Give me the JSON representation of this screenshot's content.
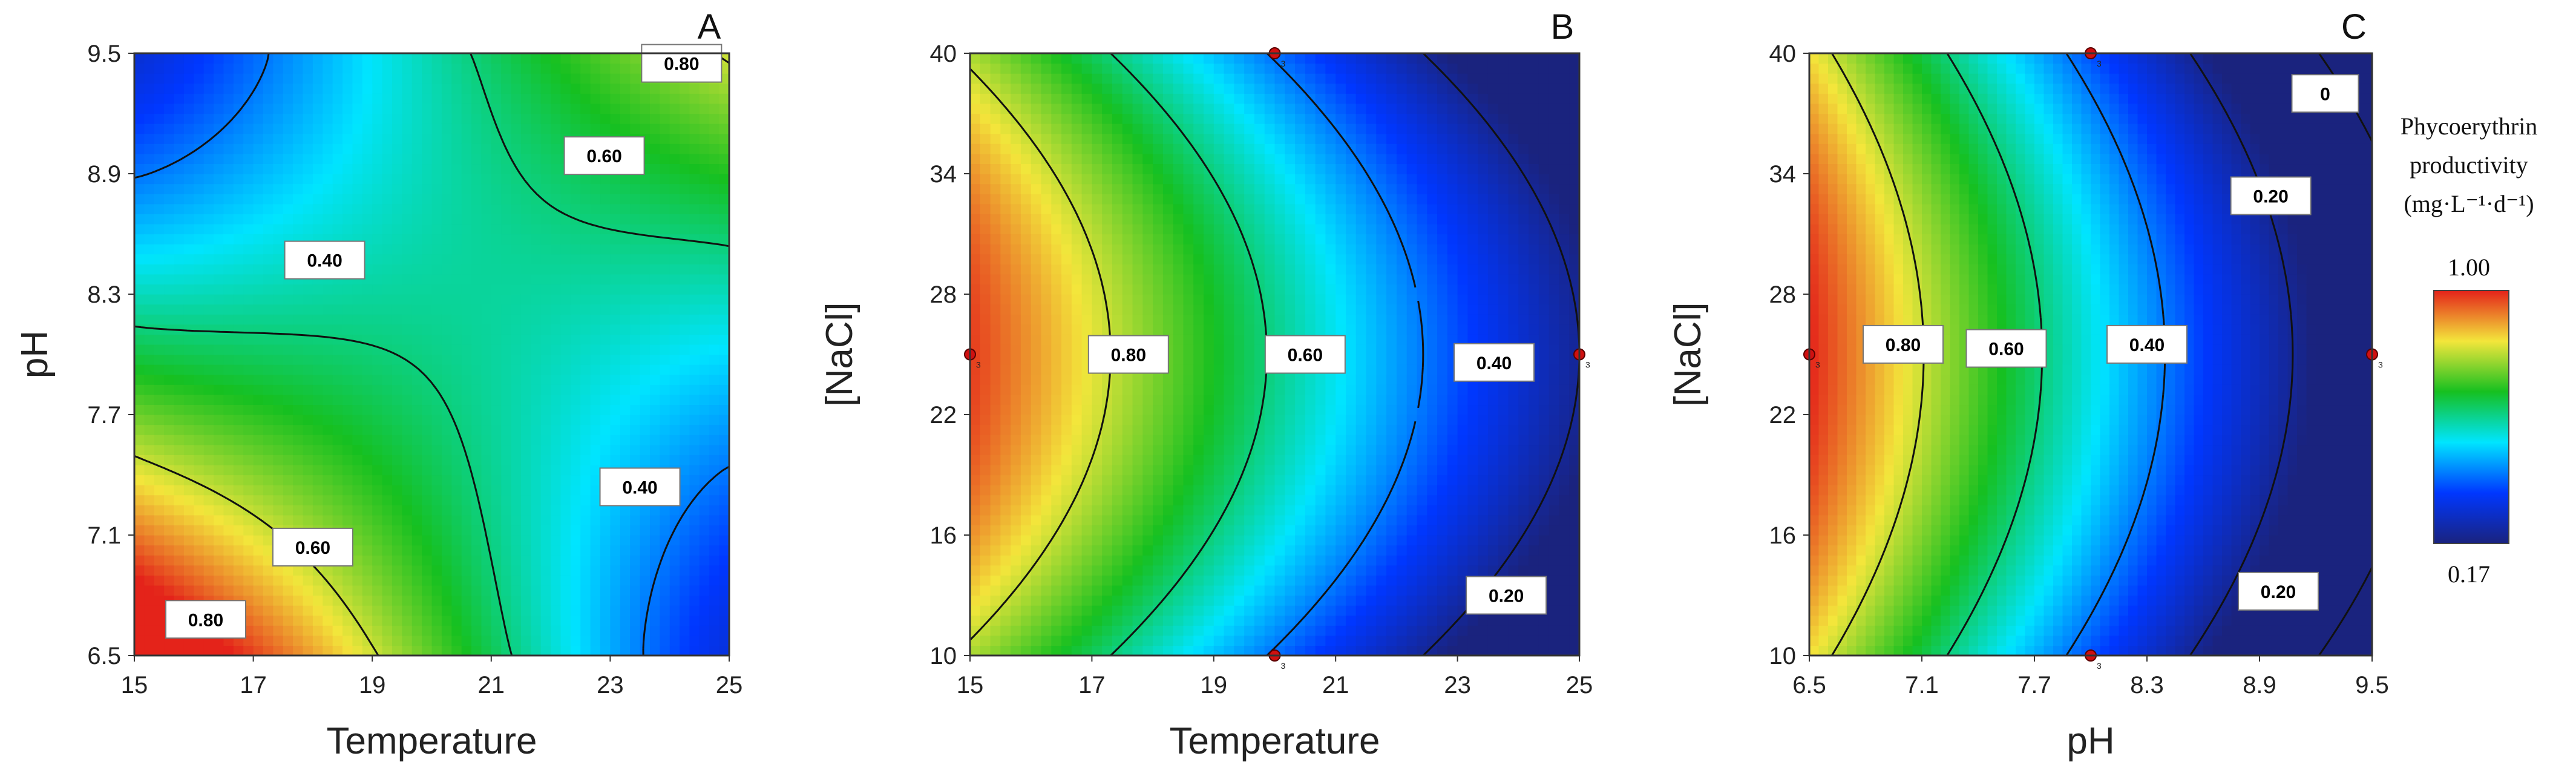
{
  "colorbar": {
    "title_lines": [
      "Phycoerythrin",
      "productivity",
      "(mg·L⁻¹·d⁻¹)"
    ],
    "max_label": "1.00",
    "min_label": "0.17",
    "max": 1.0,
    "min": 0.17,
    "stops": [
      "#1a237e",
      "#0037ff",
      "#00e5ff",
      "#16c020",
      "#f3e63b",
      "#e4231a"
    ]
  },
  "chart_data": [
    {
      "panel": "A",
      "type": "heatmap",
      "xlabel": "Temperature",
      "ylabel": "pH",
      "xlim": [
        15,
        25
      ],
      "ylim": [
        6.5,
        9.5
      ],
      "xticks": [
        "15",
        "17",
        "19",
        "21",
        "23",
        "25"
      ],
      "yticks": [
        "6.5",
        "7.1",
        "7.7",
        "8.3",
        "8.9",
        "9.5"
      ],
      "value_range": [
        0.17,
        1.0
      ],
      "contour_levels": [
        0.4,
        0.6,
        0.8
      ],
      "contour_labels": [
        {
          "text": "0.80",
          "x": 24.2,
          "y": 9.45
        },
        {
          "text": "0.60",
          "x": 22.9,
          "y": 8.99
        },
        {
          "text": "0.40",
          "x": 18.2,
          "y": 8.47
        },
        {
          "text": "0.40",
          "x": 23.5,
          "y": 7.34
        },
        {
          "text": "0.60",
          "x": 18.0,
          "y": 7.04
        },
        {
          "text": "0.80",
          "x": 16.2,
          "y": 6.68
        }
      ],
      "design_points": []
    },
    {
      "panel": "B",
      "type": "heatmap",
      "xlabel": "Temperature",
      "ylabel": "[NaCl]",
      "xlim": [
        15,
        25
      ],
      "ylim": [
        10,
        40
      ],
      "xticks": [
        "15",
        "17",
        "19",
        "21",
        "23",
        "25"
      ],
      "yticks": [
        "10",
        "16",
        "22",
        "28",
        "34",
        "40"
      ],
      "value_range": [
        0.17,
        1.0
      ],
      "contour_levels": [
        0.2,
        0.4,
        0.6,
        0.8
      ],
      "contour_labels": [
        {
          "text": "0.80",
          "x": 17.6,
          "y": 25.0
        },
        {
          "text": "0.60",
          "x": 20.5,
          "y": 25.0
        },
        {
          "text": "0.40",
          "x": 23.6,
          "y": 24.6
        },
        {
          "text": "0.20",
          "x": 23.8,
          "y": 13.0
        }
      ],
      "design_points": [
        {
          "x": 20,
          "y": 40,
          "label": "3"
        },
        {
          "x": 15,
          "y": 25,
          "label": "3"
        },
        {
          "x": 25,
          "y": 25,
          "label": "3"
        },
        {
          "x": 20,
          "y": 10,
          "label": "3"
        }
      ]
    },
    {
      "panel": "C",
      "type": "heatmap",
      "xlabel": "pH",
      "ylabel": "[NaCl]",
      "xlim": [
        6.5,
        9.5
      ],
      "ylim": [
        10,
        40
      ],
      "xticks": [
        "6.5",
        "7.1",
        "7.7",
        "8.3",
        "8.9",
        "9.5"
      ],
      "yticks": [
        "10",
        "16",
        "22",
        "28",
        "34",
        "40"
      ],
      "value_range": [
        0.17,
        1.0
      ],
      "contour_levels": [
        0,
        0.2,
        0.4,
        0.6,
        0.8
      ],
      "contour_labels": [
        {
          "text": "0",
          "x": 9.25,
          "y": 38.0
        },
        {
          "text": "0.20",
          "x": 8.96,
          "y": 32.9
        },
        {
          "text": "0.80",
          "x": 7.0,
          "y": 25.5
        },
        {
          "text": "0.60",
          "x": 7.55,
          "y": 25.3
        },
        {
          "text": "0.40",
          "x": 8.3,
          "y": 25.5
        },
        {
          "text": "0.20",
          "x": 9.0,
          "y": 13.2
        }
      ],
      "design_points": [
        {
          "x": 8.0,
          "y": 40,
          "label": "3"
        },
        {
          "x": 6.5,
          "y": 25,
          "label": "3"
        },
        {
          "x": 9.5,
          "y": 25,
          "label": "3"
        },
        {
          "x": 8.0,
          "y": 10,
          "label": "3"
        }
      ]
    }
  ]
}
